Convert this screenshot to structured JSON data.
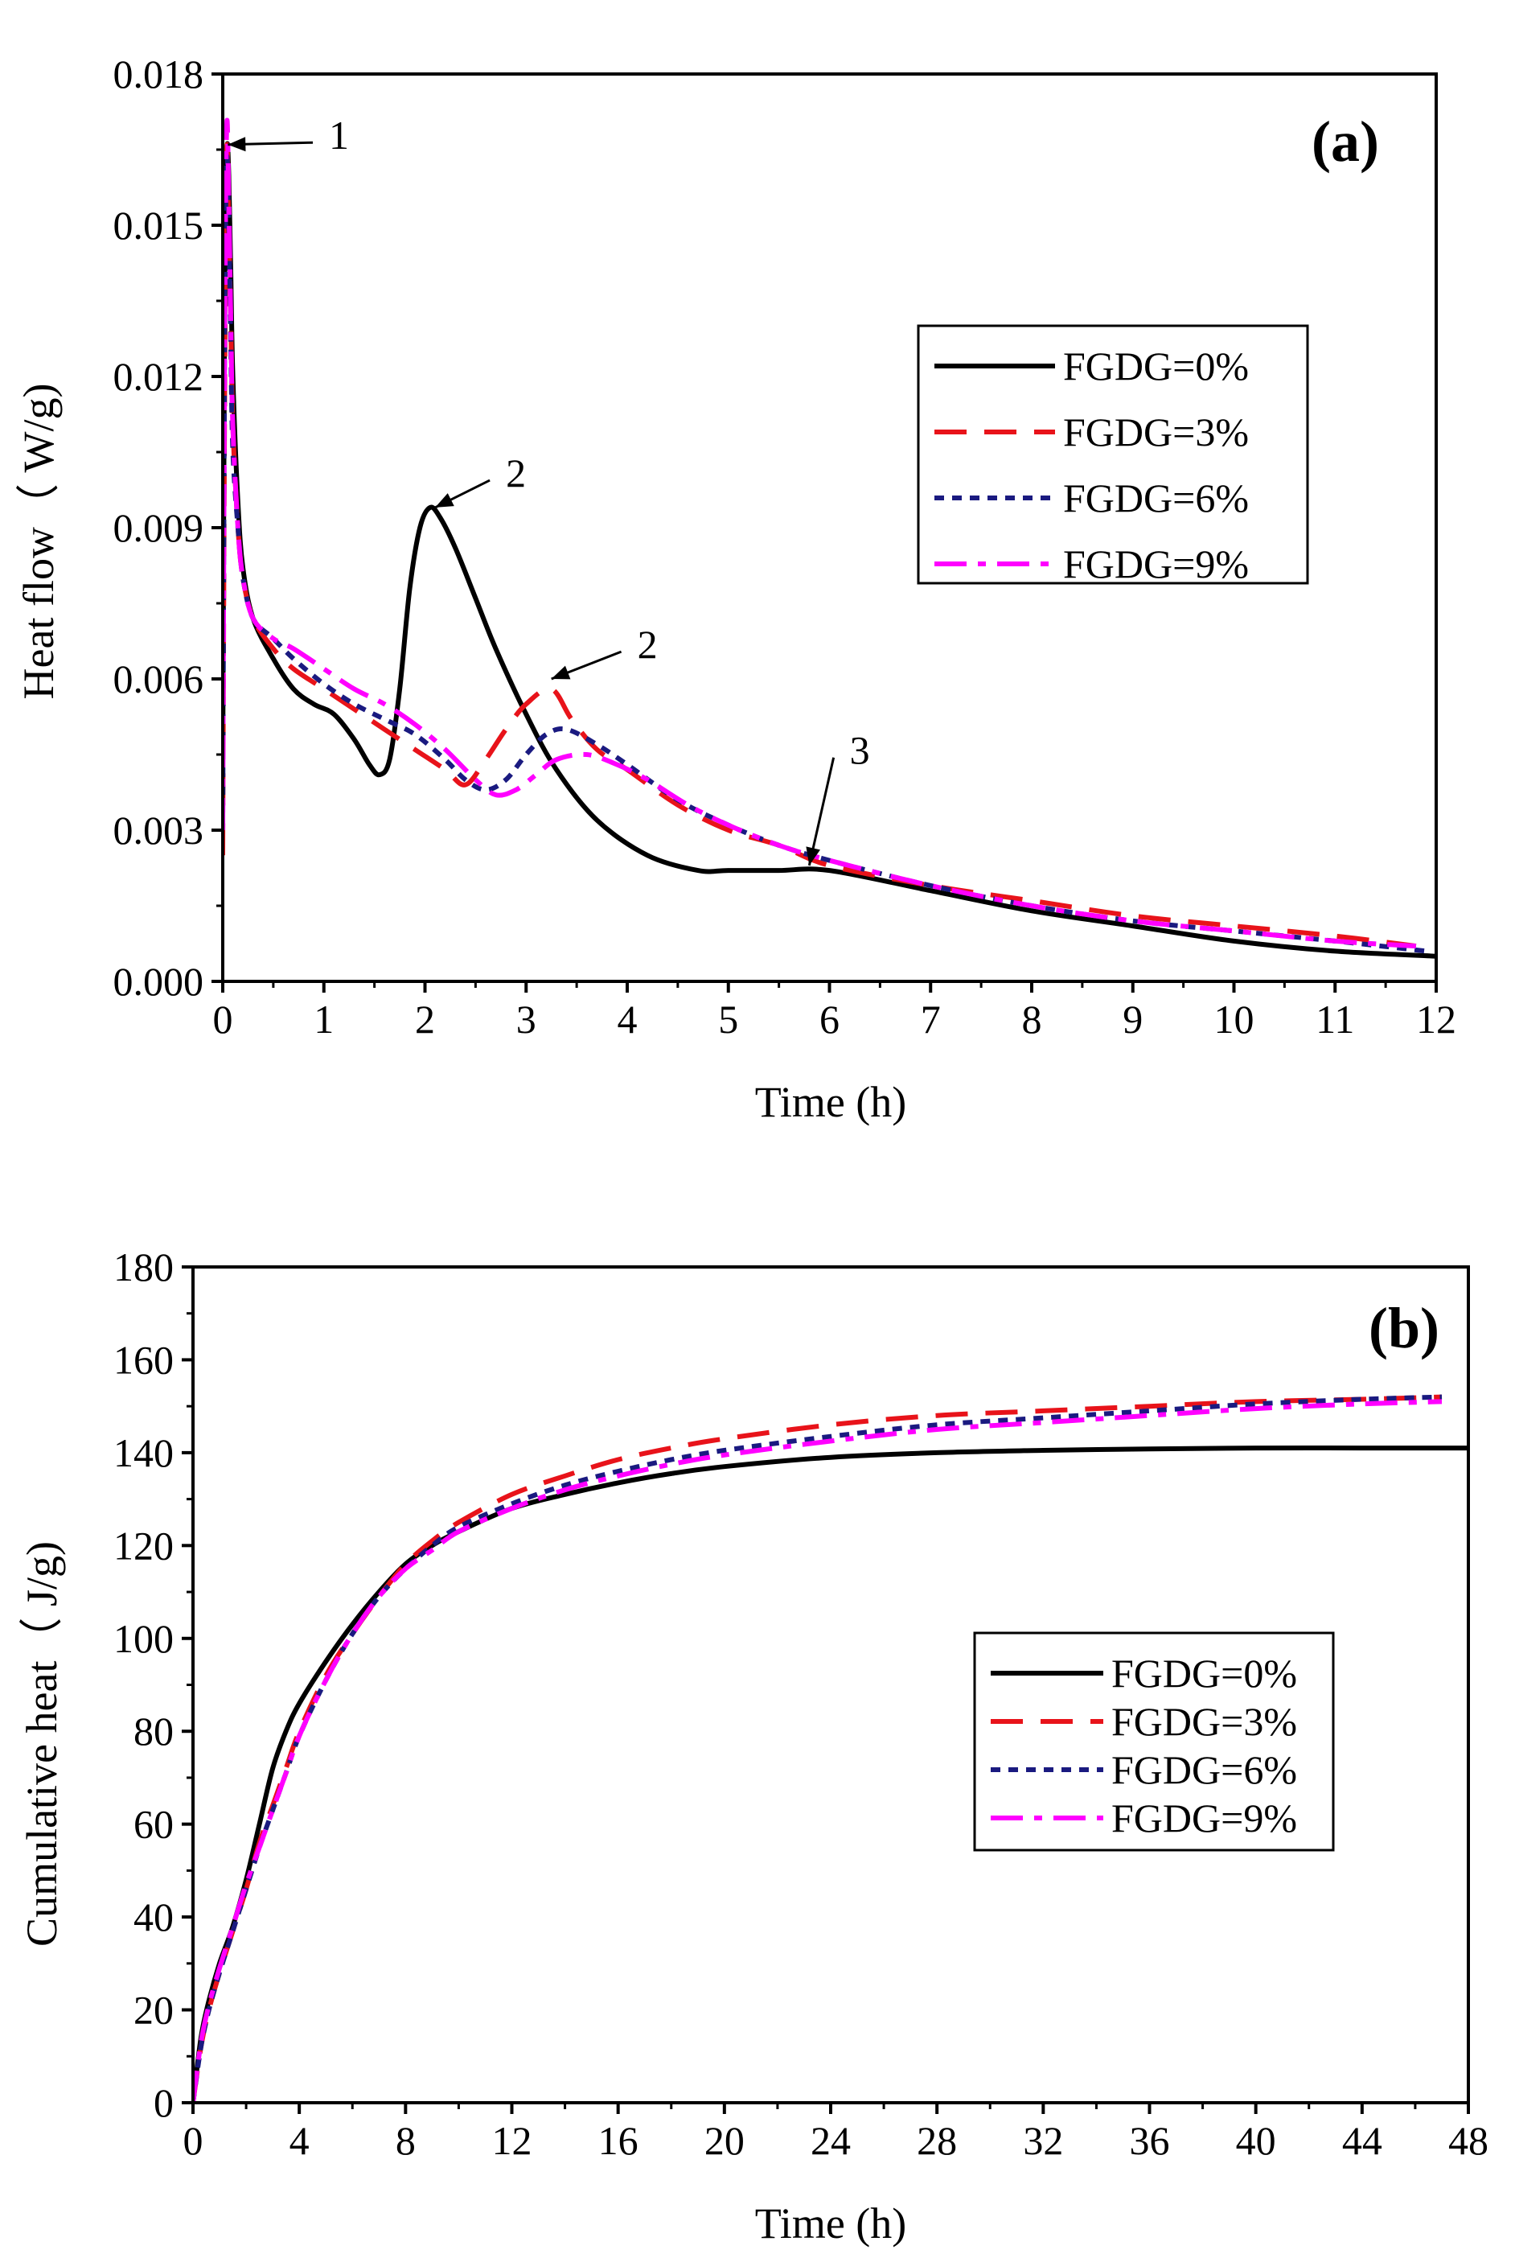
{
  "colors": {
    "FGDG=0%": "#000000",
    "FGDG=3%": "#e8131a",
    "FGDG=6%": "#1a1a80",
    "FGDG=9%": "#ff00ff"
  },
  "chart_data": [
    {
      "type": "line",
      "panel_label": "(a)",
      "xlabel": "Time (h)",
      "ylabel": "Heat flow（ W/g)",
      "xlim": [
        0,
        12
      ],
      "ylim": [
        0,
        0.018
      ],
      "xticks": [
        0,
        1,
        2,
        3,
        4,
        5,
        6,
        7,
        8,
        9,
        10,
        11,
        12
      ],
      "yticks": [
        0.0,
        0.003,
        0.006,
        0.009,
        0.012,
        0.015,
        0.018
      ],
      "ytick_labels": [
        "0.000",
        "0.003",
        "0.006",
        "0.009",
        "0.012",
        "0.015",
        "0.018"
      ],
      "legend_position": "upper-right",
      "annotations": [
        {
          "text": "1",
          "x": 0.05,
          "y": 0.0166,
          "tx": 1.05,
          "ty": 0.0168
        },
        {
          "text": "2",
          "x": 2.1,
          "y": 0.0094,
          "tx": 2.8,
          "ty": 0.0101
        },
        {
          "text": "2",
          "x": 3.25,
          "y": 0.006,
          "tx": 4.1,
          "ty": 0.0067
        },
        {
          "text": "3",
          "x": 5.8,
          "y": 0.0023,
          "tx": 6.2,
          "ty": 0.0046
        }
      ],
      "series": [
        {
          "name": "FGDG=0%",
          "dash": "solid",
          "x": [
            0,
            0.02,
            0.04,
            0.06,
            0.08,
            0.1,
            0.15,
            0.2,
            0.3,
            0.5,
            0.7,
            0.9,
            1.1,
            1.3,
            1.45,
            1.55,
            1.65,
            1.75,
            1.85,
            1.95,
            2.05,
            2.15,
            2.3,
            2.5,
            2.7,
            3.0,
            3.3,
            3.7,
            4.2,
            4.7,
            5.0,
            5.5,
            6.0,
            7.0,
            8.0,
            9.0,
            10.0,
            11.0,
            12.0
          ],
          "y": [
            0.004,
            0.014,
            0.0165,
            0.016,
            0.014,
            0.012,
            0.0095,
            0.0082,
            0.0072,
            0.0064,
            0.0058,
            0.0055,
            0.0053,
            0.0048,
            0.0043,
            0.0041,
            0.0044,
            0.0058,
            0.0078,
            0.009,
            0.0094,
            0.0092,
            0.0086,
            0.0076,
            0.0066,
            0.0053,
            0.0042,
            0.0032,
            0.0025,
            0.0022,
            0.0022,
            0.0022,
            0.0022,
            0.0018,
            0.0014,
            0.0011,
            0.0008,
            0.0006,
            0.0005
          ]
        },
        {
          "name": "FGDG=3%",
          "dash": "dashed",
          "x": [
            0,
            0.02,
            0.04,
            0.06,
            0.08,
            0.1,
            0.15,
            0.2,
            0.3,
            0.5,
            0.7,
            1.0,
            1.3,
            1.6,
            1.9,
            2.2,
            2.4,
            2.6,
            2.8,
            3.0,
            3.25,
            3.45,
            3.7,
            4.0,
            4.5,
            5.0,
            5.5,
            6.0,
            7.0,
            8.0,
            9.0,
            10.0,
            11.0,
            11.8
          ],
          "y": [
            0.0025,
            0.012,
            0.0165,
            0.015,
            0.013,
            0.011,
            0.009,
            0.008,
            0.0072,
            0.0066,
            0.0062,
            0.0058,
            0.0054,
            0.005,
            0.0046,
            0.0042,
            0.0039,
            0.0044,
            0.005,
            0.0055,
            0.0058,
            0.0052,
            0.0046,
            0.0042,
            0.0035,
            0.003,
            0.0027,
            0.0023,
            0.0019,
            0.0016,
            0.0013,
            0.0011,
            0.0009,
            0.0007
          ]
        },
        {
          "name": "FGDG=6%",
          "dash": "dotted",
          "x": [
            0,
            0.02,
            0.04,
            0.06,
            0.08,
            0.1,
            0.15,
            0.2,
            0.3,
            0.5,
            0.7,
            1.0,
            1.3,
            1.6,
            1.9,
            2.2,
            2.4,
            2.6,
            2.8,
            3.0,
            3.2,
            3.4,
            3.7,
            4.0,
            4.5,
            5.0,
            5.5,
            6.0,
            7.0,
            8.0,
            9.0,
            10.0,
            11.0,
            11.9
          ],
          "y": [
            0.003,
            0.013,
            0.0163,
            0.015,
            0.0125,
            0.0105,
            0.009,
            0.008,
            0.0072,
            0.0068,
            0.0064,
            0.0059,
            0.0055,
            0.0052,
            0.0049,
            0.0044,
            0.004,
            0.0038,
            0.004,
            0.0045,
            0.0049,
            0.005,
            0.0047,
            0.0043,
            0.0036,
            0.0031,
            0.0027,
            0.0024,
            0.0019,
            0.0015,
            0.0012,
            0.001,
            0.0008,
            0.0006
          ]
        },
        {
          "name": "FGDG=9%",
          "dash": "dashdot",
          "x": [
            0,
            0.02,
            0.04,
            0.06,
            0.08,
            0.1,
            0.15,
            0.2,
            0.3,
            0.5,
            0.7,
            1.0,
            1.3,
            1.6,
            1.9,
            2.2,
            2.5,
            2.7,
            2.9,
            3.1,
            3.3,
            3.6,
            3.9,
            4.2,
            4.6,
            5.0,
            5.5,
            6.0,
            7.0,
            8.0,
            9.0,
            10.0,
            11.0,
            11.8
          ],
          "y": [
            0.003,
            0.013,
            0.017,
            0.0155,
            0.013,
            0.011,
            0.009,
            0.008,
            0.0072,
            0.0068,
            0.0066,
            0.0062,
            0.0058,
            0.0055,
            0.0051,
            0.0046,
            0.004,
            0.0037,
            0.0038,
            0.0041,
            0.0044,
            0.0045,
            0.0043,
            0.004,
            0.0035,
            0.0031,
            0.0027,
            0.0024,
            0.0019,
            0.0015,
            0.0012,
            0.001,
            0.0008,
            0.0007
          ]
        }
      ]
    },
    {
      "type": "line",
      "panel_label": "(b)",
      "xlabel": "Time (h)",
      "ylabel": "Cumulative heat（ J/g)",
      "xlim": [
        0,
        48
      ],
      "ylim": [
        0,
        180
      ],
      "xticks": [
        0,
        4,
        8,
        12,
        16,
        20,
        24,
        28,
        32,
        36,
        40,
        44,
        48
      ],
      "yticks": [
        0,
        20,
        40,
        60,
        80,
        100,
        120,
        140,
        160,
        180
      ],
      "ytick_labels": [
        "0",
        "20",
        "40",
        "60",
        "80",
        "100",
        "120",
        "140",
        "160",
        "180"
      ],
      "legend_position": "middle-right",
      "series": [
        {
          "name": "FGDG=0%",
          "dash": "solid",
          "x": [
            0,
            0.3,
            0.6,
            1,
            1.5,
            2,
            2.5,
            3,
            3.5,
            4,
            5,
            6,
            7,
            8,
            9,
            10,
            12,
            14,
            16,
            18,
            20,
            24,
            28,
            32,
            36,
            40,
            44,
            48
          ],
          "y": [
            0,
            14,
            22,
            30,
            38,
            48,
            60,
            72,
            80,
            86,
            95,
            103,
            110,
            116,
            120,
            123,
            128,
            131,
            133.5,
            135.5,
            137,
            139,
            140,
            140.5,
            140.8,
            141,
            141,
            141
          ]
        },
        {
          "name": "FGDG=3%",
          "dash": "dashed",
          "x": [
            0,
            0.3,
            0.6,
            1,
            1.5,
            2,
            2.5,
            3,
            3.5,
            4,
            5,
            6,
            7,
            8,
            9,
            10,
            12,
            14,
            16,
            18,
            20,
            24,
            28,
            32,
            36,
            40,
            44,
            47
          ],
          "y": [
            0,
            12,
            20,
            28,
            37,
            46,
            56,
            64,
            72,
            80,
            92,
            101,
            109,
            116,
            121,
            125,
            131,
            135,
            138.5,
            141,
            143,
            146,
            148,
            149,
            150,
            151,
            151.5,
            152
          ]
        },
        {
          "name": "FGDG=6%",
          "dash": "dotted",
          "x": [
            0,
            0.3,
            0.6,
            1,
            1.5,
            2,
            2.5,
            3,
            3.5,
            4,
            5,
            6,
            7,
            8,
            9,
            10,
            12,
            14,
            16,
            18,
            20,
            24,
            28,
            32,
            36,
            40,
            44,
            47
          ],
          "y": [
            0,
            12,
            20,
            28,
            37,
            46,
            55,
            63,
            71,
            79,
            91,
            101,
            109,
            115,
            120,
            124,
            129,
            133,
            136,
            138.5,
            140.5,
            143.5,
            146,
            147.5,
            149,
            150.5,
            151.5,
            152
          ]
        },
        {
          "name": "FGDG=9%",
          "dash": "dashdot",
          "x": [
            0,
            0.3,
            0.6,
            1,
            1.5,
            2,
            2.5,
            3,
            3.5,
            4,
            5,
            6,
            7,
            8,
            9,
            10,
            12,
            14,
            16,
            18,
            20,
            24,
            28,
            32,
            36,
            40,
            44,
            47
          ],
          "y": [
            0,
            13,
            21,
            29,
            38,
            47,
            55,
            63,
            71,
            79,
            91,
            101,
            109,
            115,
            119,
            123,
            128,
            132,
            135,
            137.5,
            139.5,
            142.5,
            145,
            146.5,
            148,
            149.5,
            150.5,
            151
          ]
        }
      ]
    }
  ]
}
